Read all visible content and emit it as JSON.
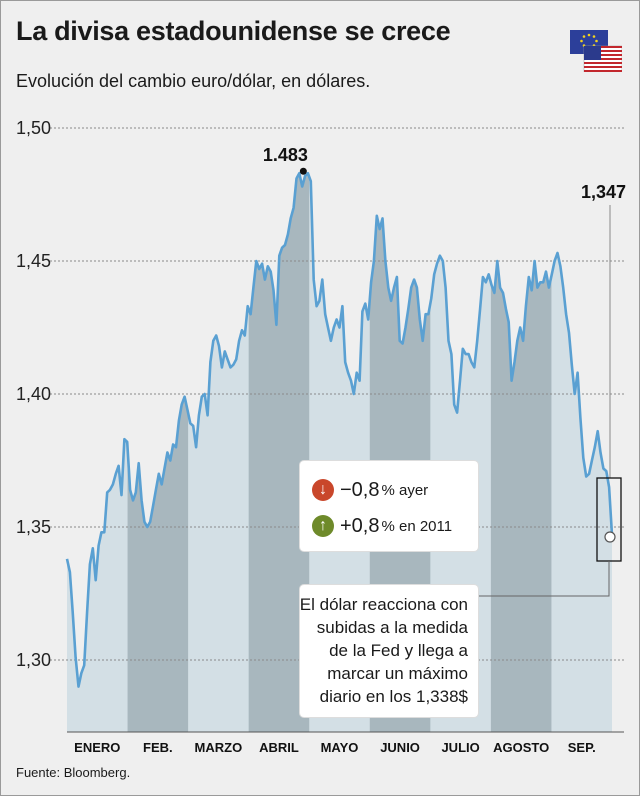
{
  "title": "La divisa estadounidense se crece",
  "subtitle": "Evolución del cambio euro/dólar, en dólares.",
  "source": "Fuente: Bloomberg.",
  "flags": {
    "icons": [
      "eu-flag-icon",
      "us-flag-icon"
    ]
  },
  "legend": {
    "down_value": "−0,8",
    "down_suffix": "% ayer",
    "up_value": "+0,8",
    "up_suffix": "% en 2011",
    "down_color": "#c9472b",
    "up_color": "#6e8a2a"
  },
  "note": {
    "lines": [
      "El dólar reacciona con",
      "subidas a la medida",
      "de la Fed y llega a",
      "marcar un máximo",
      "diario en los 1,338$"
    ]
  },
  "colors": {
    "line": "#5aa0d2",
    "area_light": "#d3dfe5",
    "area_dark": "#a8b7be",
    "grid": "#8a8a8a"
  },
  "chart_data": {
    "type": "area",
    "ylim": [
      1.275,
      1.5
    ],
    "yticks": [
      "1,50",
      "1,45",
      "1,40",
      "1,35",
      "1,30"
    ],
    "ytick_values": [
      1.5,
      1.45,
      1.4,
      1.35,
      1.3
    ],
    "months": [
      "ENERO",
      "FEB.",
      "MARZO",
      "ABRIL",
      "MAYO",
      "JUNIO",
      "JULIO",
      "AGOSTO",
      "SEP."
    ],
    "peak_label": "1.483",
    "peak_value": 1.483,
    "last_label": "1,347",
    "last_value": 1.347,
    "series": [
      {
        "values": [
          1.338,
          1.333,
          1.318,
          1.301,
          1.29,
          1.295,
          1.298,
          1.318,
          1.336,
          1.342,
          1.33,
          1.343,
          1.348,
          1.348,
          1.363,
          1.364,
          1.366,
          1.37,
          1.373,
          1.362,
          1.383,
          1.382,
          1.364,
          1.36,
          1.363,
          1.374,
          1.36,
          1.352,
          1.35,
          1.352,
          1.358,
          1.364,
          1.37,
          1.366,
          1.372,
          1.378,
          1.375,
          1.381,
          1.38,
          1.39,
          1.396,
          1.399,
          1.394,
          1.389,
          1.388,
          1.38,
          1.392,
          1.399,
          1.4,
          1.392,
          1.412,
          1.42,
          1.422,
          1.418,
          1.41,
          1.416,
          1.413,
          1.41,
          1.411,
          1.413,
          1.42,
          1.424,
          1.422,
          1.433,
          1.43,
          1.44,
          1.45,
          1.447,
          1.449,
          1.443,
          1.448,
          1.446,
          1.439,
          1.426,
          1.452,
          1.455,
          1.456,
          1.46,
          1.466,
          1.47,
          1.481,
          1.483,
          1.478,
          1.482,
          1.483,
          1.48,
          1.443,
          1.433,
          1.435,
          1.443,
          1.43,
          1.425,
          1.42,
          1.425,
          1.428,
          1.425,
          1.433,
          1.412,
          1.408,
          1.405,
          1.4,
          1.408,
          1.405,
          1.431,
          1.434,
          1.428,
          1.442,
          1.45,
          1.467,
          1.462,
          1.466,
          1.45,
          1.44,
          1.435,
          1.44,
          1.444,
          1.42,
          1.419,
          1.425,
          1.432,
          1.44,
          1.443,
          1.44,
          1.428,
          1.42,
          1.43,
          1.43,
          1.436,
          1.445,
          1.449,
          1.452,
          1.45,
          1.44,
          1.42,
          1.415,
          1.396,
          1.393,
          1.405,
          1.417,
          1.415,
          1.415,
          1.412,
          1.41,
          1.42,
          1.432,
          1.444,
          1.442,
          1.445,
          1.441,
          1.438,
          1.45,
          1.44,
          1.438,
          1.432,
          1.427,
          1.405,
          1.412,
          1.42,
          1.425,
          1.42,
          1.433,
          1.444,
          1.439,
          1.45,
          1.44,
          1.442,
          1.442,
          1.446,
          1.44,
          1.445,
          1.45,
          1.453,
          1.448,
          1.44,
          1.43,
          1.423,
          1.411,
          1.4,
          1.408,
          1.391,
          1.376,
          1.369,
          1.37,
          1.375,
          1.38,
          1.386,
          1.378,
          1.372,
          1.371,
          1.365,
          1.347
        ]
      }
    ]
  }
}
